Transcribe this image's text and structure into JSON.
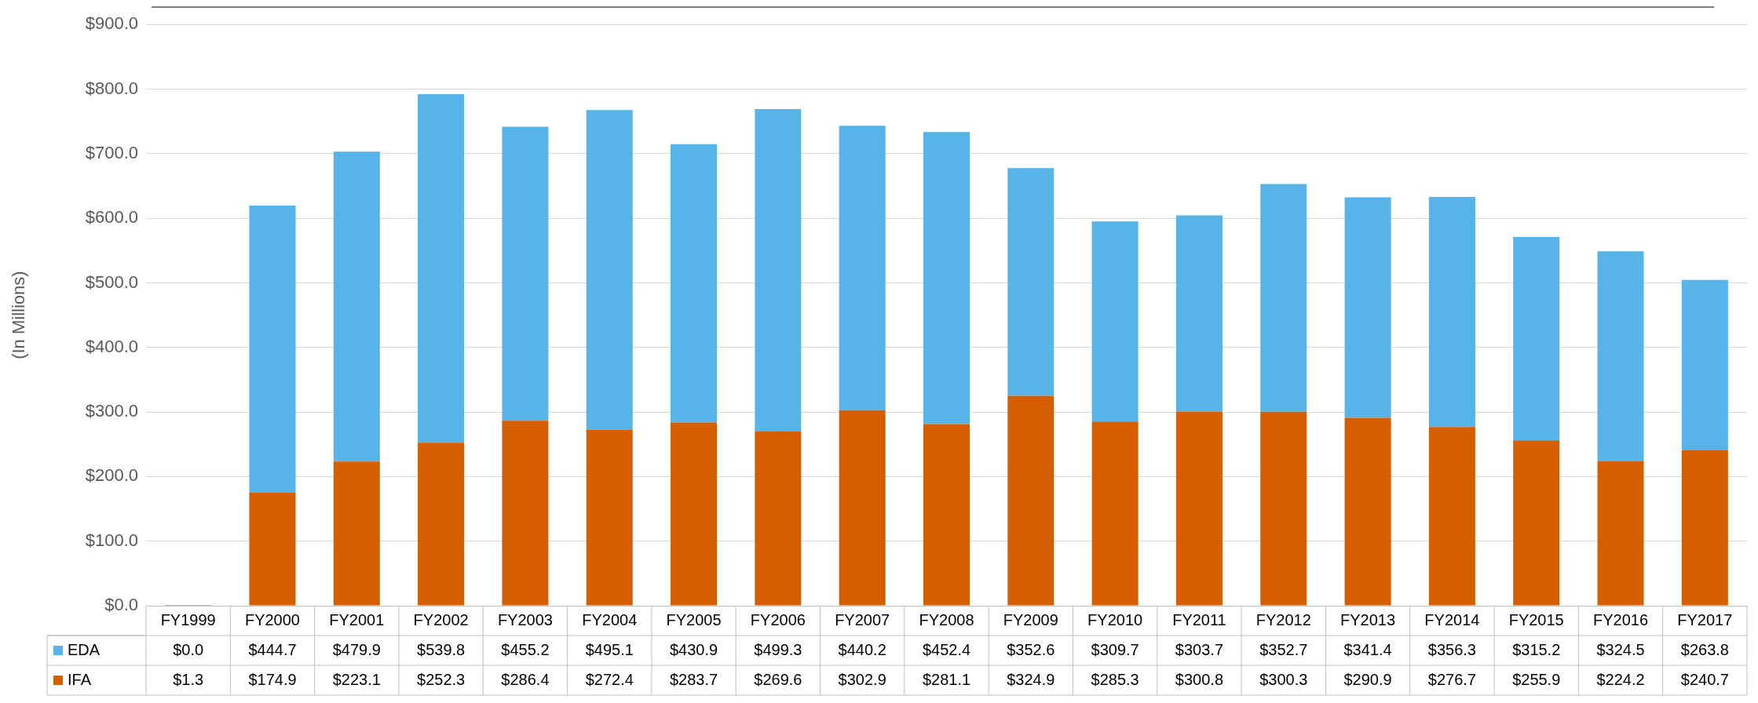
{
  "chart_data": {
    "type": "bar",
    "stacked": true,
    "ylabel": "(In Millions)",
    "categories": [
      "FY1999",
      "FY2000",
      "FY2001",
      "FY2002",
      "FY2003",
      "FY2004",
      "FY2005",
      "FY2006",
      "FY2007",
      "FY2008",
      "FY2009",
      "FY2010",
      "FY2011",
      "FY2012",
      "FY2013",
      "FY2014",
      "FY2015",
      "FY2016",
      "FY2017"
    ],
    "series": [
      {
        "name": "IFA",
        "color": "#d55e00",
        "values": [
          1.3,
          174.9,
          223.1,
          252.3,
          286.4,
          272.4,
          283.7,
          269.6,
          302.9,
          281.1,
          324.9,
          285.3,
          300.8,
          300.3,
          290.9,
          276.7,
          255.9,
          224.2,
          240.7
        ],
        "value_labels": [
          "$1.3",
          "$174.9",
          "$223.1",
          "$252.3",
          "$286.4",
          "$272.4",
          "$283.7",
          "$269.6",
          "$302.9",
          "$281.1",
          "$324.9",
          "$285.3",
          "$300.8",
          "$300.3",
          "$290.9",
          "$276.7",
          "$255.9",
          "$224.2",
          "$240.7"
        ]
      },
      {
        "name": "EDA",
        "color": "#56b4e9",
        "values": [
          0.0,
          444.7,
          479.9,
          539.8,
          455.2,
          495.1,
          430.9,
          499.3,
          440.2,
          452.4,
          352.6,
          309.7,
          303.7,
          352.7,
          341.4,
          356.3,
          315.2,
          324.5,
          263.8
        ],
        "value_labels": [
          "$0.0",
          "$444.7",
          "$479.9",
          "$539.8",
          "$455.2",
          "$495.1",
          "$430.9",
          "$499.3",
          "$440.2",
          "$452.4",
          "$352.6",
          "$309.7",
          "$303.7",
          "$352.7",
          "$341.4",
          "$356.3",
          "$315.2",
          "$324.5",
          "$263.8"
        ]
      }
    ],
    "ylim": [
      0,
      900
    ],
    "yticks": [
      {
        "value": 0,
        "label": "$0.0"
      },
      {
        "value": 100,
        "label": "$100.0"
      },
      {
        "value": 200,
        "label": "$200.0"
      },
      {
        "value": 300,
        "label": "$300.0"
      },
      {
        "value": 400,
        "label": "$400.0"
      },
      {
        "value": 500,
        "label": "$500.0"
      },
      {
        "value": 600,
        "label": "$600.0"
      },
      {
        "value": 700,
        "label": "$700.0"
      },
      {
        "value": 800,
        "label": "$800.0"
      },
      {
        "value": 900,
        "label": "$900.0"
      }
    ],
    "grid": "y",
    "legend": "bottom"
  }
}
